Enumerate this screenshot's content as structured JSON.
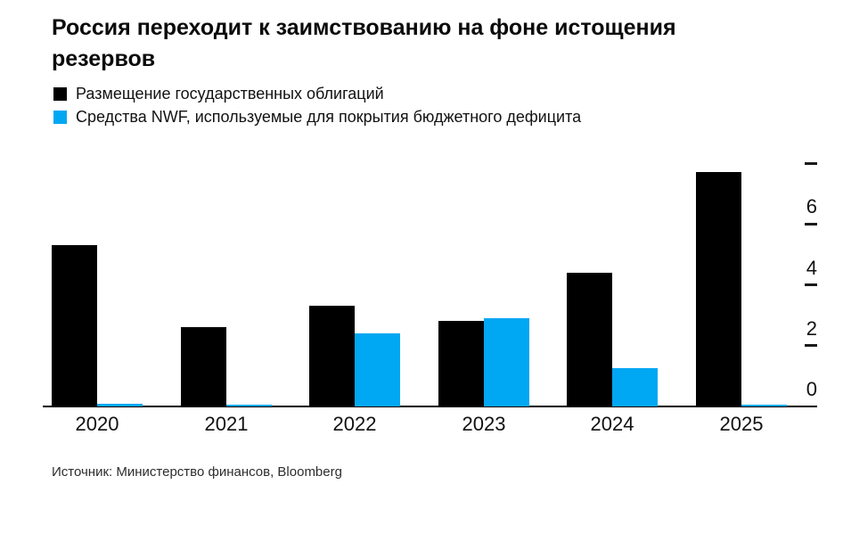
{
  "chart": {
    "title": "Россия переходит к заимствованию на фоне истощения резервов",
    "legend": [
      {
        "label": "Размещение государственных облигаций",
        "color": "#000000"
      },
      {
        "label": "Средства NWF, используемые для покрытия бюджетного дефицита",
        "color": "#00a7f2"
      }
    ],
    "source": "Источник: Министерство финансов, Bloomberg"
  },
  "chart_data": {
    "type": "bar",
    "title": "Россия переходит к заимствованию на фоне истощения резервов",
    "categories": [
      "2020",
      "2021",
      "2022",
      "2023",
      "2024",
      "2025"
    ],
    "series": [
      {
        "name": "Размещение государственных облигаций",
        "color": "#000000",
        "values": [
          5.3,
          2.6,
          3.3,
          2.8,
          4.4,
          7.7
        ]
      },
      {
        "name": "Средства NWF, используемые для покрытия бюджетного дефицита",
        "color": "#00a7f2",
        "values": [
          0.08,
          0.06,
          2.4,
          2.9,
          1.25,
          0.05
        ]
      }
    ],
    "xlabel": "",
    "ylabel": "",
    "ylim": [
      0,
      8
    ],
    "yticks_labeled": [
      0,
      2,
      4,
      6
    ],
    "yticks_dashes": [
      2,
      4,
      6,
      8
    ],
    "grid": false,
    "legend_position": "top-left",
    "yaxis_side": "right",
    "source": "Источник: Министерство финансов, Bloomberg"
  }
}
